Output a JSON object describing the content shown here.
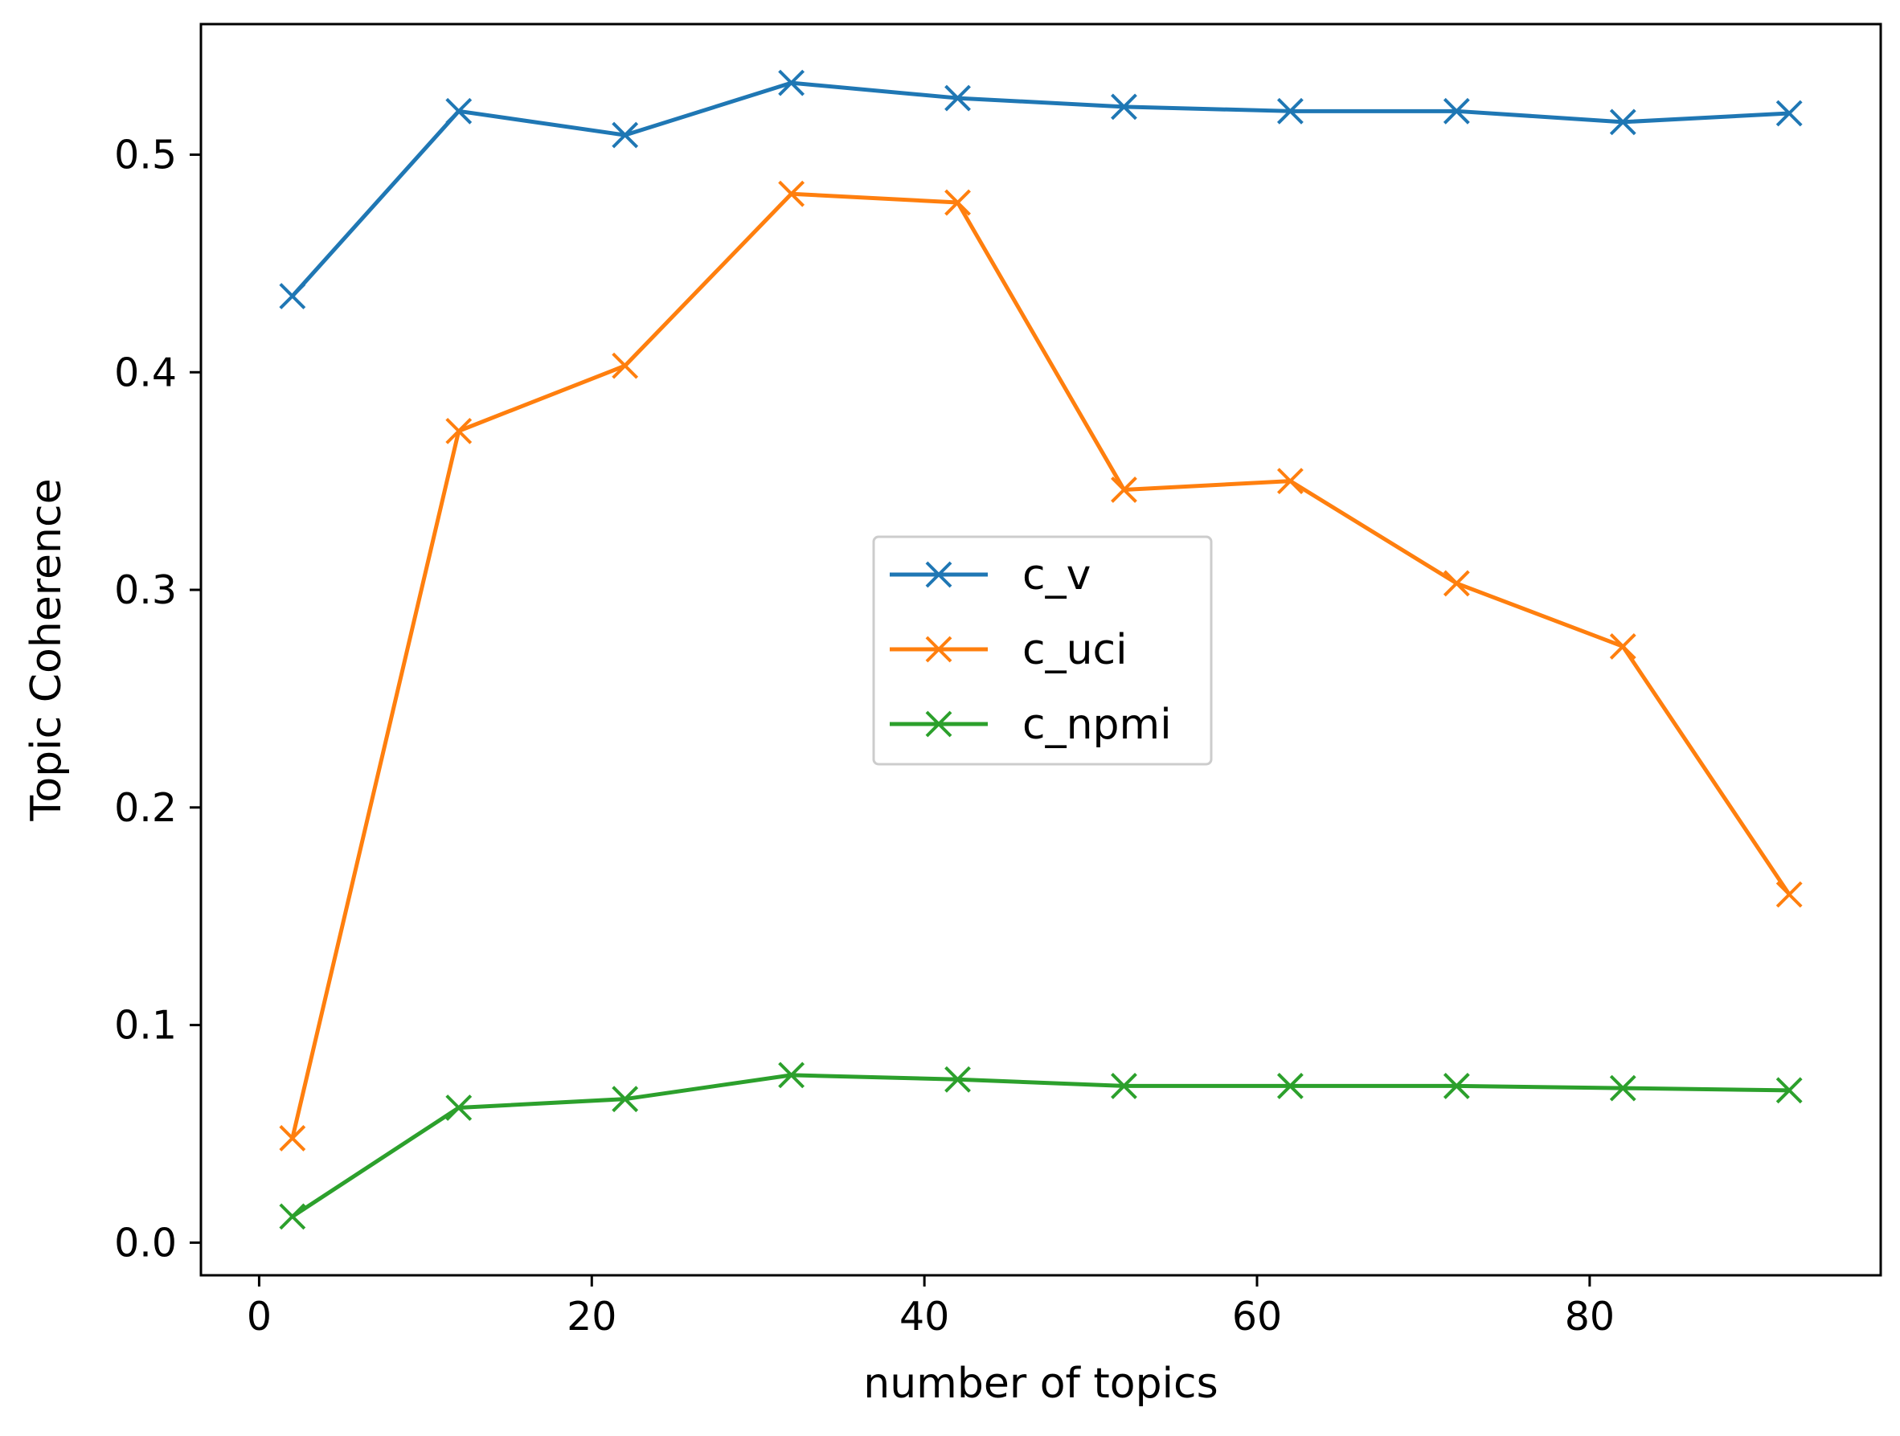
{
  "chart_data": {
    "type": "line",
    "title": "",
    "xlabel": "number of topics",
    "ylabel": "Topic Coherence",
    "x": [
      2,
      12,
      22,
      32,
      42,
      52,
      62,
      72,
      82,
      92
    ],
    "xlim": [
      -3.5,
      97.5
    ],
    "ylim": [
      -0.015,
      0.56
    ],
    "xticks": [
      0,
      20,
      40,
      60,
      80
    ],
    "xtick_labels": [
      "0",
      "20",
      "40",
      "60",
      "80"
    ],
    "yticks": [
      0.0,
      0.1,
      0.2,
      0.3,
      0.4,
      0.5
    ],
    "ytick_labels": [
      "0.0",
      "0.1",
      "0.2",
      "0.3",
      "0.4",
      "0.5"
    ],
    "grid": false,
    "legend_position": "center",
    "marker": "x",
    "series": [
      {
        "name": "c_v",
        "color": "#1f77b4",
        "values": [
          0.435,
          0.52,
          0.509,
          0.533,
          0.526,
          0.522,
          0.52,
          0.52,
          0.515,
          0.519
        ]
      },
      {
        "name": "c_uci",
        "color": "#ff7f0e",
        "values": [
          0.048,
          0.373,
          0.403,
          0.482,
          0.478,
          0.346,
          0.35,
          0.303,
          0.274,
          0.16
        ]
      },
      {
        "name": "c_npmi",
        "color": "#2ca02c",
        "values": [
          0.012,
          0.062,
          0.066,
          0.077,
          0.075,
          0.072,
          0.072,
          0.072,
          0.071,
          0.07
        ]
      }
    ]
  }
}
